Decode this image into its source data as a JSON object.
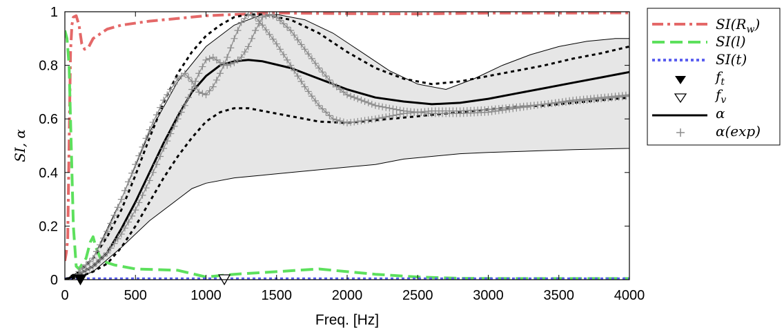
{
  "chart_data": {
    "type": "line",
    "xlabel": "Freq. [Hz]",
    "ylabel": "SI, α",
    "xlim": [
      0,
      4000
    ],
    "ylim": [
      0,
      1
    ],
    "xticks": [
      0,
      500,
      1000,
      1500,
      2000,
      2500,
      3000,
      3500,
      4000
    ],
    "yticks": [
      0,
      0.2,
      0.4,
      0.6,
      0.8,
      1
    ],
    "xtick_labels": [
      "0",
      "500",
      "1000",
      "1500",
      "2000",
      "2500",
      "3000",
      "3500",
      "4000"
    ],
    "ytick_labels": [
      "0",
      "0.2",
      "0.4",
      "0.6",
      "0.8",
      "1"
    ],
    "legend_position": "outside-top-right",
    "band": {
      "upper": [
        [
          0,
          0
        ],
        [
          100,
          0.03
        ],
        [
          200,
          0.08
        ],
        [
          400,
          0.3
        ],
        [
          600,
          0.55
        ],
        [
          800,
          0.74
        ],
        [
          1000,
          0.87
        ],
        [
          1200,
          0.95
        ],
        [
          1400,
          0.99
        ],
        [
          1500,
          0.99
        ],
        [
          1700,
          0.97
        ],
        [
          1900,
          0.92
        ],
        [
          2100,
          0.85
        ],
        [
          2300,
          0.78
        ],
        [
          2500,
          0.73
        ],
        [
          2700,
          0.71
        ],
        [
          2900,
          0.75
        ],
        [
          3100,
          0.8
        ],
        [
          3300,
          0.84
        ],
        [
          3500,
          0.87
        ],
        [
          3700,
          0.89
        ],
        [
          3900,
          0.9
        ],
        [
          4000,
          0.9
        ]
      ],
      "lower": [
        [
          0,
          0
        ],
        [
          100,
          0.01
        ],
        [
          200,
          0.03
        ],
        [
          400,
          0.12
        ],
        [
          600,
          0.22
        ],
        [
          800,
          0.3
        ],
        [
          900,
          0.34
        ],
        [
          1000,
          0.36
        ],
        [
          1200,
          0.38
        ],
        [
          1400,
          0.39
        ],
        [
          1600,
          0.4
        ],
        [
          1800,
          0.41
        ],
        [
          2000,
          0.42
        ],
        [
          2200,
          0.43
        ],
        [
          2400,
          0.45
        ],
        [
          2600,
          0.46
        ],
        [
          2800,
          0.47
        ],
        [
          3000,
          0.475
        ],
        [
          3300,
          0.48
        ],
        [
          3600,
          0.485
        ],
        [
          4000,
          0.49
        ]
      ]
    },
    "series": [
      {
        "name": "SI(R_w)",
        "style": "dash-dot",
        "color": "#e46868",
        "points": [
          [
            0,
            0.07
          ],
          [
            10,
            0.1
          ],
          [
            20,
            0.15
          ],
          [
            30,
            0.5
          ],
          [
            40,
            0.85
          ],
          [
            50,
            0.95
          ],
          [
            60,
            0.98
          ],
          [
            80,
            0.985
          ],
          [
            100,
            0.95
          ],
          [
            120,
            0.88
          ],
          [
            140,
            0.86
          ],
          [
            170,
            0.87
          ],
          [
            200,
            0.9
          ],
          [
            300,
            0.935
          ],
          [
            400,
            0.95
          ],
          [
            600,
            0.965
          ],
          [
            800,
            0.975
          ],
          [
            1000,
            0.985
          ],
          [
            1200,
            0.99
          ],
          [
            1500,
            0.995
          ],
          [
            2000,
            0.993
          ],
          [
            2500,
            0.992
          ],
          [
            3000,
            0.995
          ],
          [
            3500,
            0.995
          ],
          [
            4000,
            0.996
          ]
        ]
      },
      {
        "name": "SI(l)",
        "style": "dash",
        "color": "#5de05d",
        "points": [
          [
            0,
            0.93
          ],
          [
            15,
            0.9
          ],
          [
            30,
            0.8
          ],
          [
            45,
            0.5
          ],
          [
            60,
            0.2
          ],
          [
            80,
            0.05
          ],
          [
            100,
            0.04
          ],
          [
            150,
            0.08
          ],
          [
            180,
            0.14
          ],
          [
            200,
            0.16
          ],
          [
            220,
            0.12
          ],
          [
            260,
            0.07
          ],
          [
            350,
            0.055
          ],
          [
            500,
            0.04
          ],
          [
            800,
            0.035
          ],
          [
            1000,
            0.01
          ],
          [
            1200,
            0.02
          ],
          [
            1500,
            0.03
          ],
          [
            1800,
            0.04
          ],
          [
            2000,
            0.03
          ],
          [
            2200,
            0.02
          ],
          [
            2500,
            0.01
          ],
          [
            2800,
            0.005
          ],
          [
            3200,
            0.004
          ],
          [
            3600,
            0.004
          ],
          [
            4000,
            0.004
          ]
        ]
      },
      {
        "name": "SI(t)",
        "style": "dot",
        "color": "#5b5ff0",
        "points": [
          [
            0,
            0.003
          ],
          [
            1000,
            0.003
          ],
          [
            2000,
            0.003
          ],
          [
            3000,
            0.003
          ],
          [
            4000,
            0.003
          ]
        ]
      },
      {
        "name": "α",
        "style": "solid",
        "color": "#000000",
        "points": [
          [
            0,
            0
          ],
          [
            100,
            0.02
          ],
          [
            200,
            0.05
          ],
          [
            300,
            0.1
          ],
          [
            400,
            0.19
          ],
          [
            500,
            0.29
          ],
          [
            600,
            0.4
          ],
          [
            700,
            0.51
          ],
          [
            800,
            0.61
          ],
          [
            900,
            0.7
          ],
          [
            1000,
            0.76
          ],
          [
            1100,
            0.8
          ],
          [
            1200,
            0.815
          ],
          [
            1300,
            0.82
          ],
          [
            1400,
            0.815
          ],
          [
            1600,
            0.79
          ],
          [
            1800,
            0.75
          ],
          [
            2000,
            0.71
          ],
          [
            2200,
            0.68
          ],
          [
            2400,
            0.665
          ],
          [
            2600,
            0.655
          ],
          [
            2800,
            0.66
          ],
          [
            3000,
            0.675
          ],
          [
            3200,
            0.695
          ],
          [
            3400,
            0.715
          ],
          [
            3600,
            0.735
          ],
          [
            3800,
            0.755
          ],
          [
            4000,
            0.775
          ]
        ]
      },
      {
        "name": "α upper",
        "style": "dotted-thick",
        "color": "#000000",
        "points": [
          [
            0,
            0
          ],
          [
            100,
            0.03
          ],
          [
            200,
            0.08
          ],
          [
            300,
            0.16
          ],
          [
            400,
            0.26
          ],
          [
            500,
            0.39
          ],
          [
            600,
            0.53
          ],
          [
            700,
            0.66
          ],
          [
            800,
            0.77
          ],
          [
            900,
            0.85
          ],
          [
            1000,
            0.91
          ],
          [
            1100,
            0.95
          ],
          [
            1200,
            0.98
          ],
          [
            1300,
            0.99
          ],
          [
            1400,
            0.99
          ],
          [
            1600,
            0.97
          ],
          [
            1800,
            0.92
          ],
          [
            2000,
            0.85
          ],
          [
            2200,
            0.79
          ],
          [
            2400,
            0.75
          ],
          [
            2600,
            0.73
          ],
          [
            2800,
            0.74
          ],
          [
            3000,
            0.76
          ],
          [
            3200,
            0.78
          ],
          [
            3400,
            0.8
          ],
          [
            3600,
            0.825
          ],
          [
            3800,
            0.845
          ],
          [
            4000,
            0.87
          ]
        ]
      },
      {
        "name": "α lower",
        "style": "dotted-thick",
        "color": "#000000",
        "points": [
          [
            0,
            0
          ],
          [
            100,
            0.01
          ],
          [
            200,
            0.03
          ],
          [
            300,
            0.06
          ],
          [
            400,
            0.12
          ],
          [
            500,
            0.2
          ],
          [
            600,
            0.29
          ],
          [
            700,
            0.38
          ],
          [
            800,
            0.46
          ],
          [
            900,
            0.53
          ],
          [
            1000,
            0.59
          ],
          [
            1100,
            0.625
          ],
          [
            1200,
            0.64
          ],
          [
            1300,
            0.64
          ],
          [
            1400,
            0.63
          ],
          [
            1600,
            0.61
          ],
          [
            1800,
            0.59
          ],
          [
            2000,
            0.585
          ],
          [
            2200,
            0.595
          ],
          [
            2400,
            0.605
          ],
          [
            2600,
            0.615
          ],
          [
            2800,
            0.625
          ],
          [
            3000,
            0.635
          ],
          [
            3200,
            0.645
          ],
          [
            3400,
            0.65
          ],
          [
            3600,
            0.66
          ],
          [
            3800,
            0.67
          ],
          [
            4000,
            0.68
          ]
        ]
      }
    ],
    "exp_series": {
      "name": "α(exp)",
      "color": "#8c8c8c",
      "curves": [
        [
          [
            100,
            0.03
          ],
          [
            200,
            0.08
          ],
          [
            300,
            0.18
          ],
          [
            400,
            0.3
          ],
          [
            500,
            0.43
          ],
          [
            600,
            0.56
          ],
          [
            700,
            0.67
          ],
          [
            800,
            0.75
          ],
          [
            850,
            0.77
          ],
          [
            900,
            0.74
          ],
          [
            950,
            0.7
          ],
          [
            1000,
            0.69
          ],
          [
            1050,
            0.72
          ],
          [
            1100,
            0.77
          ],
          [
            1150,
            0.83
          ],
          [
            1200,
            0.9
          ],
          [
            1250,
            0.96
          ],
          [
            1300,
            0.99
          ],
          [
            1350,
            0.98
          ],
          [
            1400,
            0.95
          ],
          [
            1500,
            0.88
          ],
          [
            1600,
            0.8
          ],
          [
            1700,
            0.72
          ],
          [
            1800,
            0.65
          ],
          [
            1900,
            0.6
          ],
          [
            2000,
            0.585
          ],
          [
            2200,
            0.6
          ],
          [
            2400,
            0.62
          ],
          [
            2600,
            0.63
          ],
          [
            2800,
            0.63
          ],
          [
            3000,
            0.635
          ],
          [
            3200,
            0.645
          ],
          [
            3400,
            0.655
          ],
          [
            3600,
            0.67
          ],
          [
            3800,
            0.68
          ],
          [
            4000,
            0.69
          ]
        ],
        [
          [
            100,
            0.02
          ],
          [
            200,
            0.05
          ],
          [
            300,
            0.1
          ],
          [
            400,
            0.17
          ],
          [
            500,
            0.26
          ],
          [
            600,
            0.37
          ],
          [
            700,
            0.49
          ],
          [
            800,
            0.6
          ],
          [
            850,
            0.65
          ],
          [
            900,
            0.71
          ],
          [
            950,
            0.77
          ],
          [
            1000,
            0.82
          ],
          [
            1050,
            0.83
          ],
          [
            1100,
            0.81
          ],
          [
            1150,
            0.8
          ],
          [
            1200,
            0.81
          ],
          [
            1250,
            0.83
          ],
          [
            1300,
            0.87
          ],
          [
            1350,
            0.93
          ],
          [
            1400,
            0.98
          ],
          [
            1450,
            0.99
          ],
          [
            1500,
            0.98
          ],
          [
            1600,
            0.93
          ],
          [
            1700,
            0.86
          ],
          [
            1800,
            0.79
          ],
          [
            1900,
            0.73
          ],
          [
            2000,
            0.69
          ],
          [
            2200,
            0.65
          ],
          [
            2400,
            0.63
          ],
          [
            2600,
            0.62
          ],
          [
            2800,
            0.62
          ],
          [
            3000,
            0.625
          ],
          [
            3200,
            0.64
          ],
          [
            3400,
            0.655
          ],
          [
            3600,
            0.665
          ],
          [
            3800,
            0.675
          ],
          [
            4000,
            0.685
          ]
        ]
      ]
    },
    "markers": [
      {
        "name": "f_t",
        "symbol": "filled-triangle-down",
        "x": 110,
        "y": 0
      },
      {
        "name": "f_v",
        "symbol": "open-triangle-down",
        "x": 1130,
        "y": 0
      }
    ]
  }
}
